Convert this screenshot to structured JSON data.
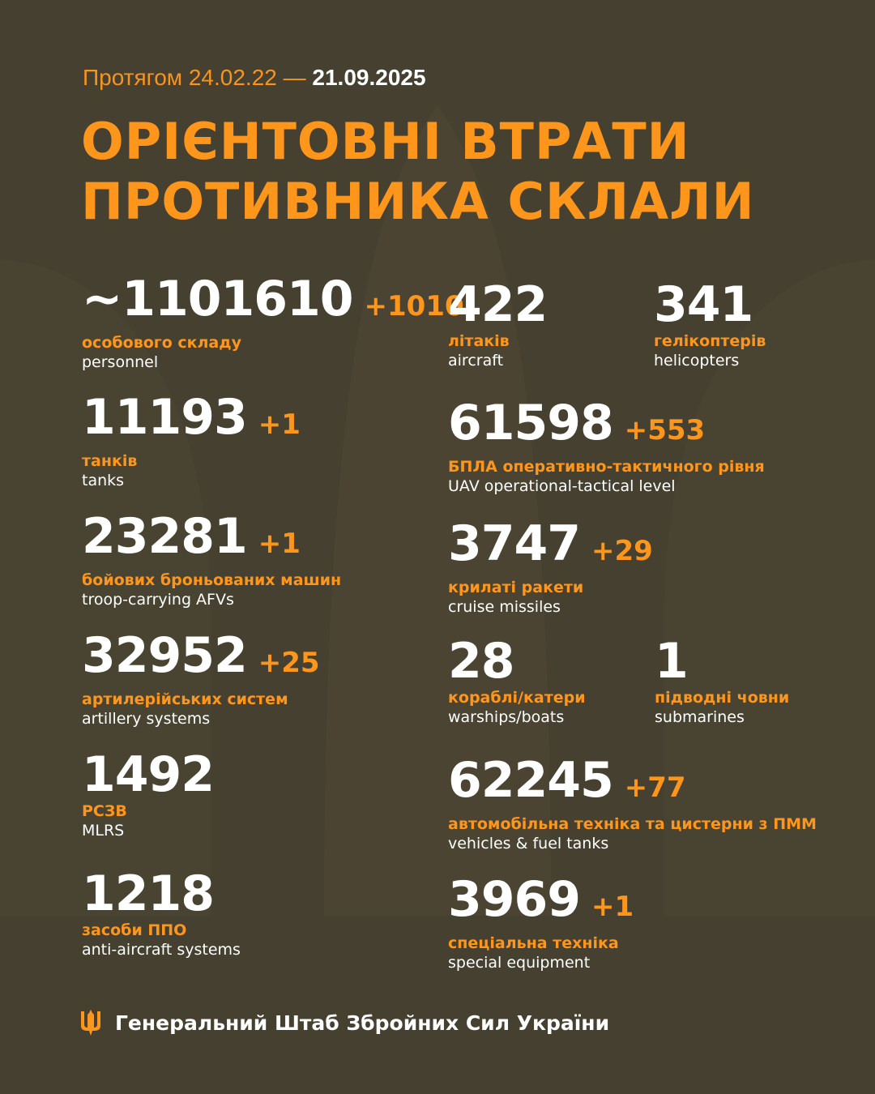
{
  "header": {
    "period_prefix": "Протягом 24.02.22 —",
    "period_end": "21.09.2025",
    "title_line1": "ОРІЄНТОВНІ ВТРАТИ",
    "title_line2": "ПРОТИВНИКА СКЛАЛИ"
  },
  "stats": {
    "personnel": {
      "value": "~1101610",
      "increase": "+1010",
      "ua": "особового складу",
      "en": "personnel"
    },
    "tanks": {
      "value": "11193",
      "increase": "+1",
      "ua": "танків",
      "en": "tanks"
    },
    "afv": {
      "value": "23281",
      "increase": "+1",
      "ua": "бойових броньованих машин",
      "en": "troop-carrying AFVs"
    },
    "artillery": {
      "value": "32952",
      "increase": "+25",
      "ua": "артилерійських систем",
      "en": "artillery systems"
    },
    "mlrs": {
      "value": "1492",
      "ua": "РСЗВ",
      "en": "MLRS"
    },
    "antiaircraft": {
      "value": "1218",
      "ua": "засоби ППО",
      "en": "anti-aircraft systems"
    },
    "aircraft": {
      "value": "422",
      "ua": "літаків",
      "en": "aircraft"
    },
    "helicopters": {
      "value": "341",
      "ua": "гелікоптерів",
      "en": "helicopters"
    },
    "uav": {
      "value": "61598",
      "increase": "+553",
      "ua": "БПЛА оперативно-тактичного рівня",
      "en": "UAV operational-tactical level"
    },
    "cruise_missiles": {
      "value": "3747",
      "increase": "+29",
      "ua": "крилаті ракети",
      "en": "cruise missiles"
    },
    "warships": {
      "value": "28",
      "ua": "кораблі/катери",
      "en": "warships/boats"
    },
    "submarines": {
      "value": "1",
      "ua": "підводні човни",
      "en": "submarines"
    },
    "vehicles": {
      "value": "62245",
      "increase": "+77",
      "ua": "автомобільна техніка та цистерни з ПММ",
      "en": "vehicles & fuel tanks"
    },
    "special": {
      "value": "3969",
      "increase": "+1",
      "ua": "спеціальна техніка",
      "en": "special equipment"
    }
  },
  "footer": {
    "text": "Генеральний Штаб Збройних Сил України",
    "icon": "trident-icon"
  },
  "colors": {
    "background": "#45402f",
    "accent": "#ff961c",
    "text": "#ffffff"
  }
}
